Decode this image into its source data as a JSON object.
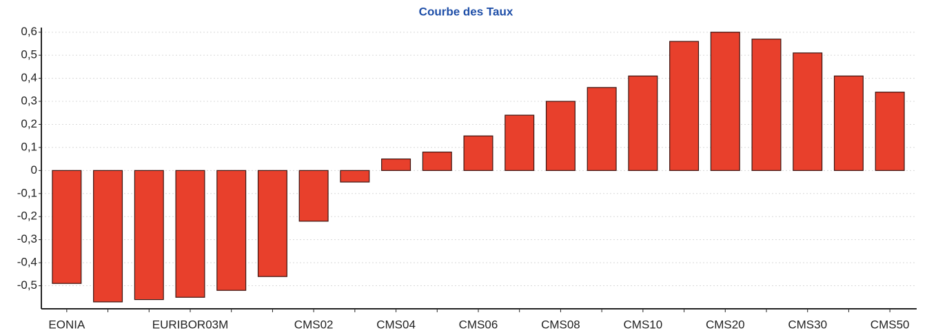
{
  "chart_data": {
    "type": "bar",
    "title": "Courbe des Taux",
    "categories": [
      "EONIA",
      null,
      null,
      "EURIBOR03M",
      null,
      null,
      "CMS02",
      null,
      "CMS04",
      null,
      "CMS06",
      null,
      "CMS08",
      null,
      "CMS10",
      null,
      "CMS20",
      null,
      "CMS30",
      null,
      "CMS50"
    ],
    "values": [
      -0.49,
      -0.57,
      -0.56,
      -0.55,
      -0.52,
      -0.46,
      -0.22,
      -0.05,
      0.05,
      0.08,
      0.15,
      0.24,
      0.3,
      0.36,
      0.41,
      0.56,
      0.6,
      0.57,
      0.51,
      0.41,
      0.34
    ],
    "color": "#e8402c",
    "ylim": [
      -0.6,
      0.62
    ],
    "yticks": [
      {
        "value": -0.5,
        "label": "-0,5"
      },
      {
        "value": -0.4,
        "label": "-0,4"
      },
      {
        "value": -0.3,
        "label": "-0,3"
      },
      {
        "value": -0.2,
        "label": "-0,2"
      },
      {
        "value": -0.1,
        "label": "-0,1"
      },
      0,
      {
        "value": 0.1,
        "label": "0,1"
      },
      {
        "value": 0.2,
        "label": "0,2"
      },
      {
        "value": 0.3,
        "label": "0,3"
      },
      {
        "value": 0.4,
        "label": "0,4"
      },
      {
        "value": 0.5,
        "label": "0,5"
      },
      {
        "value": 0.6,
        "label": "0,6"
      }
    ],
    "grid": true
  }
}
